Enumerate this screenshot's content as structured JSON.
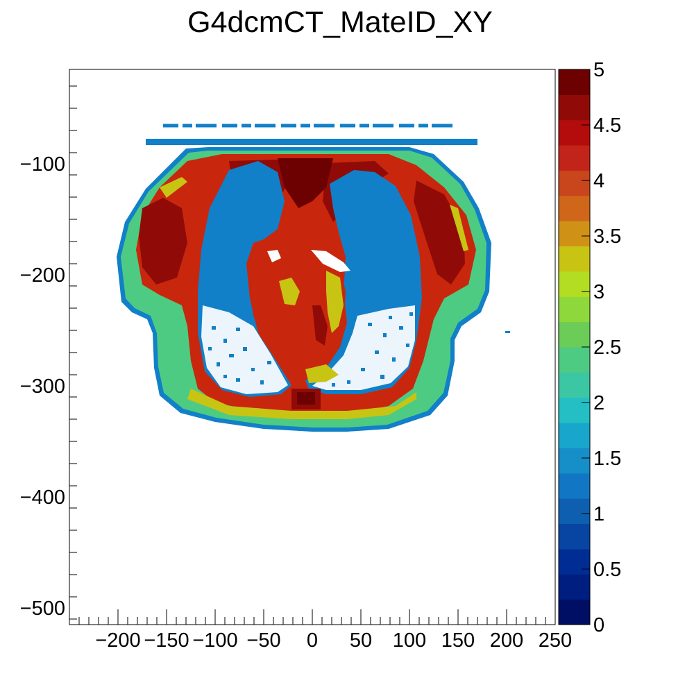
{
  "chart_data": {
    "type": "heatmap",
    "title": "G4dcmCT_MateID_XY",
    "xlabel": "",
    "ylabel": "",
    "xlim": [
      -250,
      250
    ],
    "ylim": [
      -515,
      -15
    ],
    "x_ticks": [
      -200,
      -150,
      -100,
      -50,
      0,
      50,
      100,
      150,
      200,
      250
    ],
    "x_tick_labels": [
      "−200",
      "−150",
      "−100",
      "−50",
      "0",
      "50",
      "100",
      "150",
      "200",
      "250"
    ],
    "y_ticks": [
      -100,
      -200,
      -300,
      -400,
      -500
    ],
    "y_tick_labels": [
      "−100",
      "−200",
      "−300",
      "−400",
      "−500"
    ],
    "z_range": [
      0,
      5
    ],
    "z_ticks": [
      0,
      0.5,
      1,
      1.5,
      2,
      2.5,
      3,
      3.5,
      4,
      4.5,
      5
    ],
    "z_tick_labels": [
      "0",
      "0.5",
      "1",
      "1.5",
      "2",
      "2.5",
      "3",
      "3.5",
      "4",
      "4.5",
      "5"
    ],
    "palette": [
      "#000f63",
      "#001e80",
      "#002d94",
      "#0845a3",
      "#0e5fb0",
      "#1177c4",
      "#168ec8",
      "#18a6cc",
      "#24bfc4",
      "#3cc7a4",
      "#4ecb82",
      "#6bcc57",
      "#8fd83c",
      "#b2dd22",
      "#c8c414",
      "#d09216",
      "#d0661a",
      "#c9451c",
      "#c32419",
      "#b40c0c",
      "#900b08",
      "#6d0000"
    ],
    "material_colors": {
      "1": "#1180c8",
      "2": "#4ecb82",
      "3": "#c8c414",
      "4": "#c8270d",
      "4.5": "#900b08",
      "5": "#6d0000"
    },
    "regions": [
      {
        "material": 1,
        "shape": "bar",
        "x": [
          -150,
          148
        ],
        "y": [
          -61,
          -63
        ]
      },
      {
        "material": 1,
        "shape": "bar",
        "x": [
          -170,
          168
        ],
        "y": [
          -79,
          -86
        ]
      },
      {
        "material": 2,
        "shape": "body-outline"
      },
      {
        "material": 4,
        "shape": "muscle-layer"
      },
      {
        "material": 1,
        "shape": "right-lung"
      },
      {
        "material": 1,
        "shape": "left-lung"
      },
      {
        "material": 4,
        "shape": "heart"
      },
      {
        "material": 5,
        "shape": "spine",
        "x": [
          -15,
          15
        ],
        "y": [
          -305,
          -325
        ]
      }
    ]
  }
}
